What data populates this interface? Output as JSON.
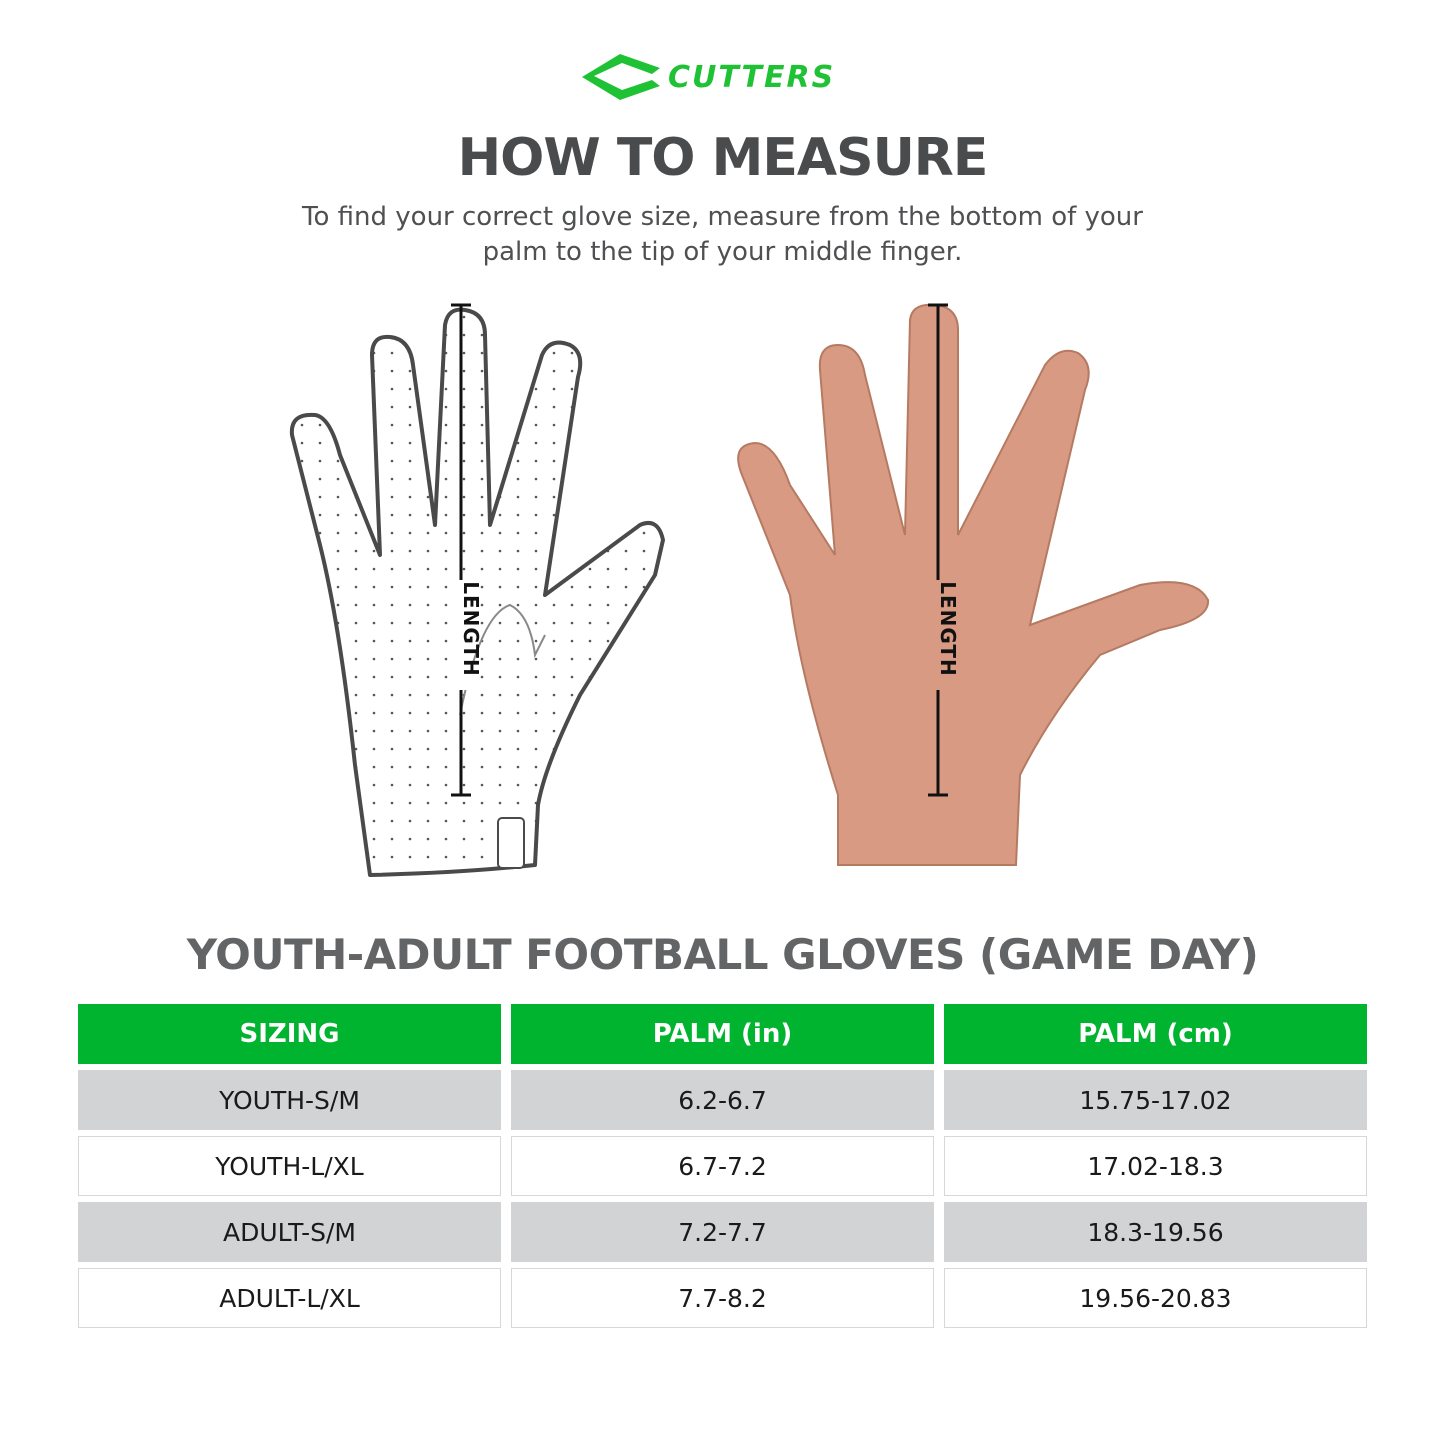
{
  "brand": {
    "logo_text": "CUTTERS",
    "color": "#1fc234"
  },
  "header": {
    "title": "HOW TO MEASURE",
    "subtitle_line1": "To find your correct glove size, measure from the bottom of your",
    "subtitle_line2": "palm to the tip of your middle finger."
  },
  "illustrations": {
    "glove_label": "LENGTH",
    "hand_label": "LENGTH"
  },
  "table": {
    "title": "YOUTH-ADULT FOOTBALL GLOVES (GAME DAY)",
    "header_color": "#00b42f",
    "columns": [
      "SIZING",
      "PALM (in)",
      "PALM (cm)"
    ],
    "rows": [
      [
        "YOUTH-S/M",
        "6.2-6.7",
        "15.75-17.02"
      ],
      [
        "YOUTH-L/XL",
        "6.7-7.2",
        "17.02-18.3"
      ],
      [
        "ADULT-S/M",
        "7.2-7.7",
        "18.3-19.56"
      ],
      [
        "ADULT-L/XL",
        "7.7-8.2",
        "19.56-20.83"
      ]
    ]
  }
}
